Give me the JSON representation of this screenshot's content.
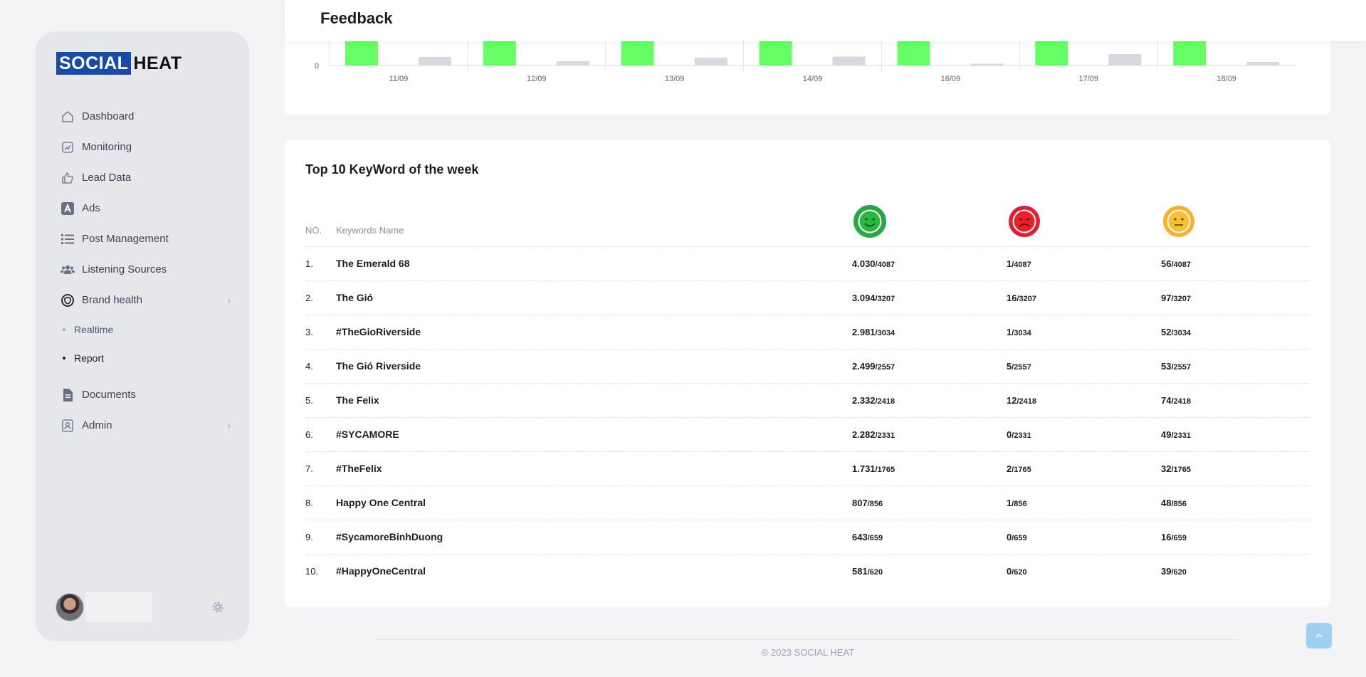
{
  "brand": {
    "part1": "SOCIAL",
    "part2": "HEAT"
  },
  "sidebar": {
    "items": [
      {
        "label": "Dashboard",
        "icon": "home-icon"
      },
      {
        "label": "Monitoring",
        "icon": "chart-icon"
      },
      {
        "label": "Lead Data",
        "icon": "thumbs-up-icon"
      },
      {
        "label": "Ads",
        "icon": "ads-icon"
      },
      {
        "label": "Post Management",
        "icon": "list-icon"
      },
      {
        "label": "Listening Sources",
        "icon": "people-icon"
      },
      {
        "label": "Brand health",
        "icon": "shield-icon"
      }
    ],
    "brand_health_sub": [
      {
        "label": "Realtime"
      },
      {
        "label": "Report"
      }
    ],
    "items_bottom": [
      {
        "label": "Documents",
        "icon": "document-icon"
      },
      {
        "label": "Admin",
        "icon": "admin-icon"
      }
    ]
  },
  "header": {
    "title": "Feedback"
  },
  "chart_data": {
    "type": "bar",
    "categories": [
      "11/09",
      "12/09",
      "13/09",
      "14/09",
      "16/09",
      "17/09",
      "18/09"
    ],
    "y_tick_visible": "0",
    "colors": {
      "positive": "#66ff66",
      "other": "#d8d9de"
    },
    "series": [
      {
        "values": [
          4030,
          3094,
          2981,
          2499,
          2332,
          2282,
          1731
        ]
      },
      {
        "values": [
          560,
          290,
          520,
          580,
          120,
          740,
          230
        ]
      }
    ]
  },
  "keywords": {
    "title": "Top 10 KeyWord of the week",
    "headers": {
      "no": "NO.",
      "name": "Keywords Name"
    },
    "sentiment_icons": [
      "happy-face-icon",
      "sad-face-icon",
      "neutral-face-icon"
    ],
    "rows": [
      {
        "no": "1.",
        "name": "The Emerald 68",
        "pos": "4.030",
        "neg": "1",
        "neu": "56",
        "total": "/4087"
      },
      {
        "no": "2.",
        "name": "The Gió",
        "pos": "3.094",
        "neg": "16",
        "neu": "97",
        "total": "/3207"
      },
      {
        "no": "3.",
        "name": "#TheGioRiverside",
        "pos": "2.981",
        "neg": "1",
        "neu": "52",
        "total": "/3034"
      },
      {
        "no": "4.",
        "name": "The Gió Riverside",
        "pos": "2.499",
        "neg": "5",
        "neu": "53",
        "total": "/2557"
      },
      {
        "no": "5.",
        "name": "The Felix",
        "pos": "2.332",
        "neg": "12",
        "neu": "74",
        "total": "/2418"
      },
      {
        "no": "6.",
        "name": "#SYCAMORE",
        "pos": "2.282",
        "neg": "0",
        "neu": "49",
        "total": "/2331"
      },
      {
        "no": "7.",
        "name": "#TheFelix",
        "pos": "1.731",
        "neg": "2",
        "neu": "32",
        "total": "/1765"
      },
      {
        "no": "8.",
        "name": "Happy One Central",
        "pos": "807",
        "neg": "1",
        "neu": "48",
        "total": "/856"
      },
      {
        "no": "9.",
        "name": "#SycamoreBinhDuong",
        "pos": "643",
        "neg": "0",
        "neu": "16",
        "total": "/659"
      },
      {
        "no": "10.",
        "name": "#HappyOneCentral",
        "pos": "581",
        "neg": "0",
        "neu": "39",
        "total": "/620"
      }
    ]
  },
  "footer": {
    "text": "© 2023 SOCIAL HEAT"
  }
}
